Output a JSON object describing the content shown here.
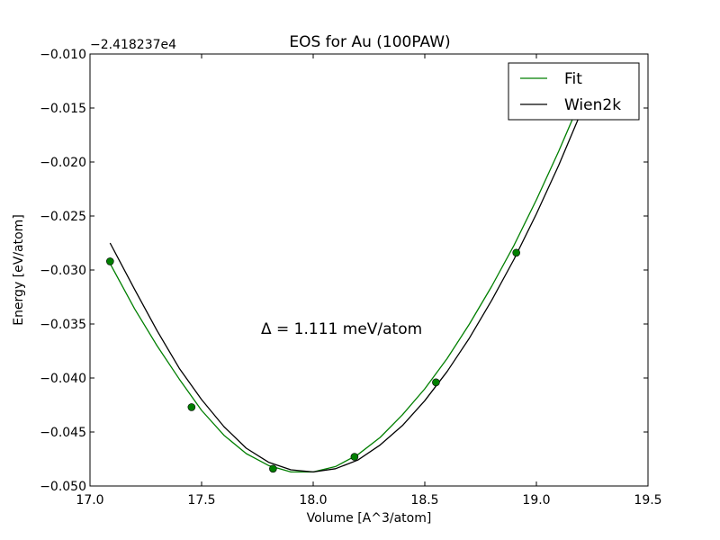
{
  "chart_data": {
    "type": "line",
    "title": "EOS for Au (100PAW)",
    "xlabel": "Volume [A^3/atom]",
    "ylabel": "Energy [eV/atom]",
    "y_offset_text": "−2.418237e4",
    "annotation": "Δ = 1.111 meV/atom",
    "xlim": [
      17.0,
      19.5
    ],
    "ylim": [
      -0.05,
      -0.01
    ],
    "x_ticks": [
      17.0,
      17.5,
      18.0,
      18.5,
      19.0,
      19.5
    ],
    "x_tick_labels": [
      "17.0",
      "17.5",
      "18.0",
      "18.5",
      "19.0",
      "19.5"
    ],
    "y_ticks": [
      -0.01,
      -0.015,
      -0.02,
      -0.025,
      -0.03,
      -0.035,
      -0.04,
      -0.045,
      -0.05
    ],
    "y_tick_labels": [
      "−0.010",
      "−0.015",
      "−0.020",
      "−0.025",
      "−0.030",
      "−0.035",
      "−0.040",
      "−0.045",
      "−0.050"
    ],
    "grid": false,
    "legend_position": "top-right",
    "points": {
      "x": [
        17.09,
        17.455,
        17.82,
        18.185,
        18.55,
        18.91
      ],
      "y": [
        -0.0292,
        -0.0427,
        -0.0484,
        -0.0473,
        -0.0404,
        -0.0284
      ],
      "color": "#007f00"
    },
    "series": [
      {
        "name": "Fit",
        "color": "#007f00",
        "x": [
          17.09,
          17.2,
          17.3,
          17.4,
          17.5,
          17.6,
          17.7,
          17.8,
          17.9,
          18.0,
          18.1,
          18.2,
          18.3,
          18.4,
          18.5,
          18.6,
          18.7,
          18.8,
          18.9,
          19.0,
          19.1,
          19.2
        ],
        "y": [
          -0.0294,
          -0.0336,
          -0.037,
          -0.0401,
          -0.043,
          -0.0453,
          -0.047,
          -0.0481,
          -0.0487,
          -0.0487,
          -0.0482,
          -0.0471,
          -0.0455,
          -0.0434,
          -0.041,
          -0.0382,
          -0.035,
          -0.0315,
          -0.0277,
          -0.0235,
          -0.019,
          -0.0142
        ]
      },
      {
        "name": "Wien2k",
        "color": "#000000",
        "x": [
          17.09,
          17.2,
          17.3,
          17.4,
          17.5,
          17.6,
          17.7,
          17.8,
          17.9,
          18.0,
          18.1,
          18.2,
          18.3,
          18.4,
          18.5,
          18.6,
          18.7,
          18.8,
          18.9,
          19.0,
          19.1,
          19.2,
          19.25
        ],
        "y": [
          -0.0275,
          -0.0318,
          -0.0356,
          -0.0391,
          -0.042,
          -0.0445,
          -0.0465,
          -0.0478,
          -0.0485,
          -0.0487,
          -0.0484,
          -0.0476,
          -0.0462,
          -0.0444,
          -0.0421,
          -0.0394,
          -0.0363,
          -0.0328,
          -0.029,
          -0.0248,
          -0.0203,
          -0.0154,
          -0.0129
        ]
      }
    ]
  }
}
